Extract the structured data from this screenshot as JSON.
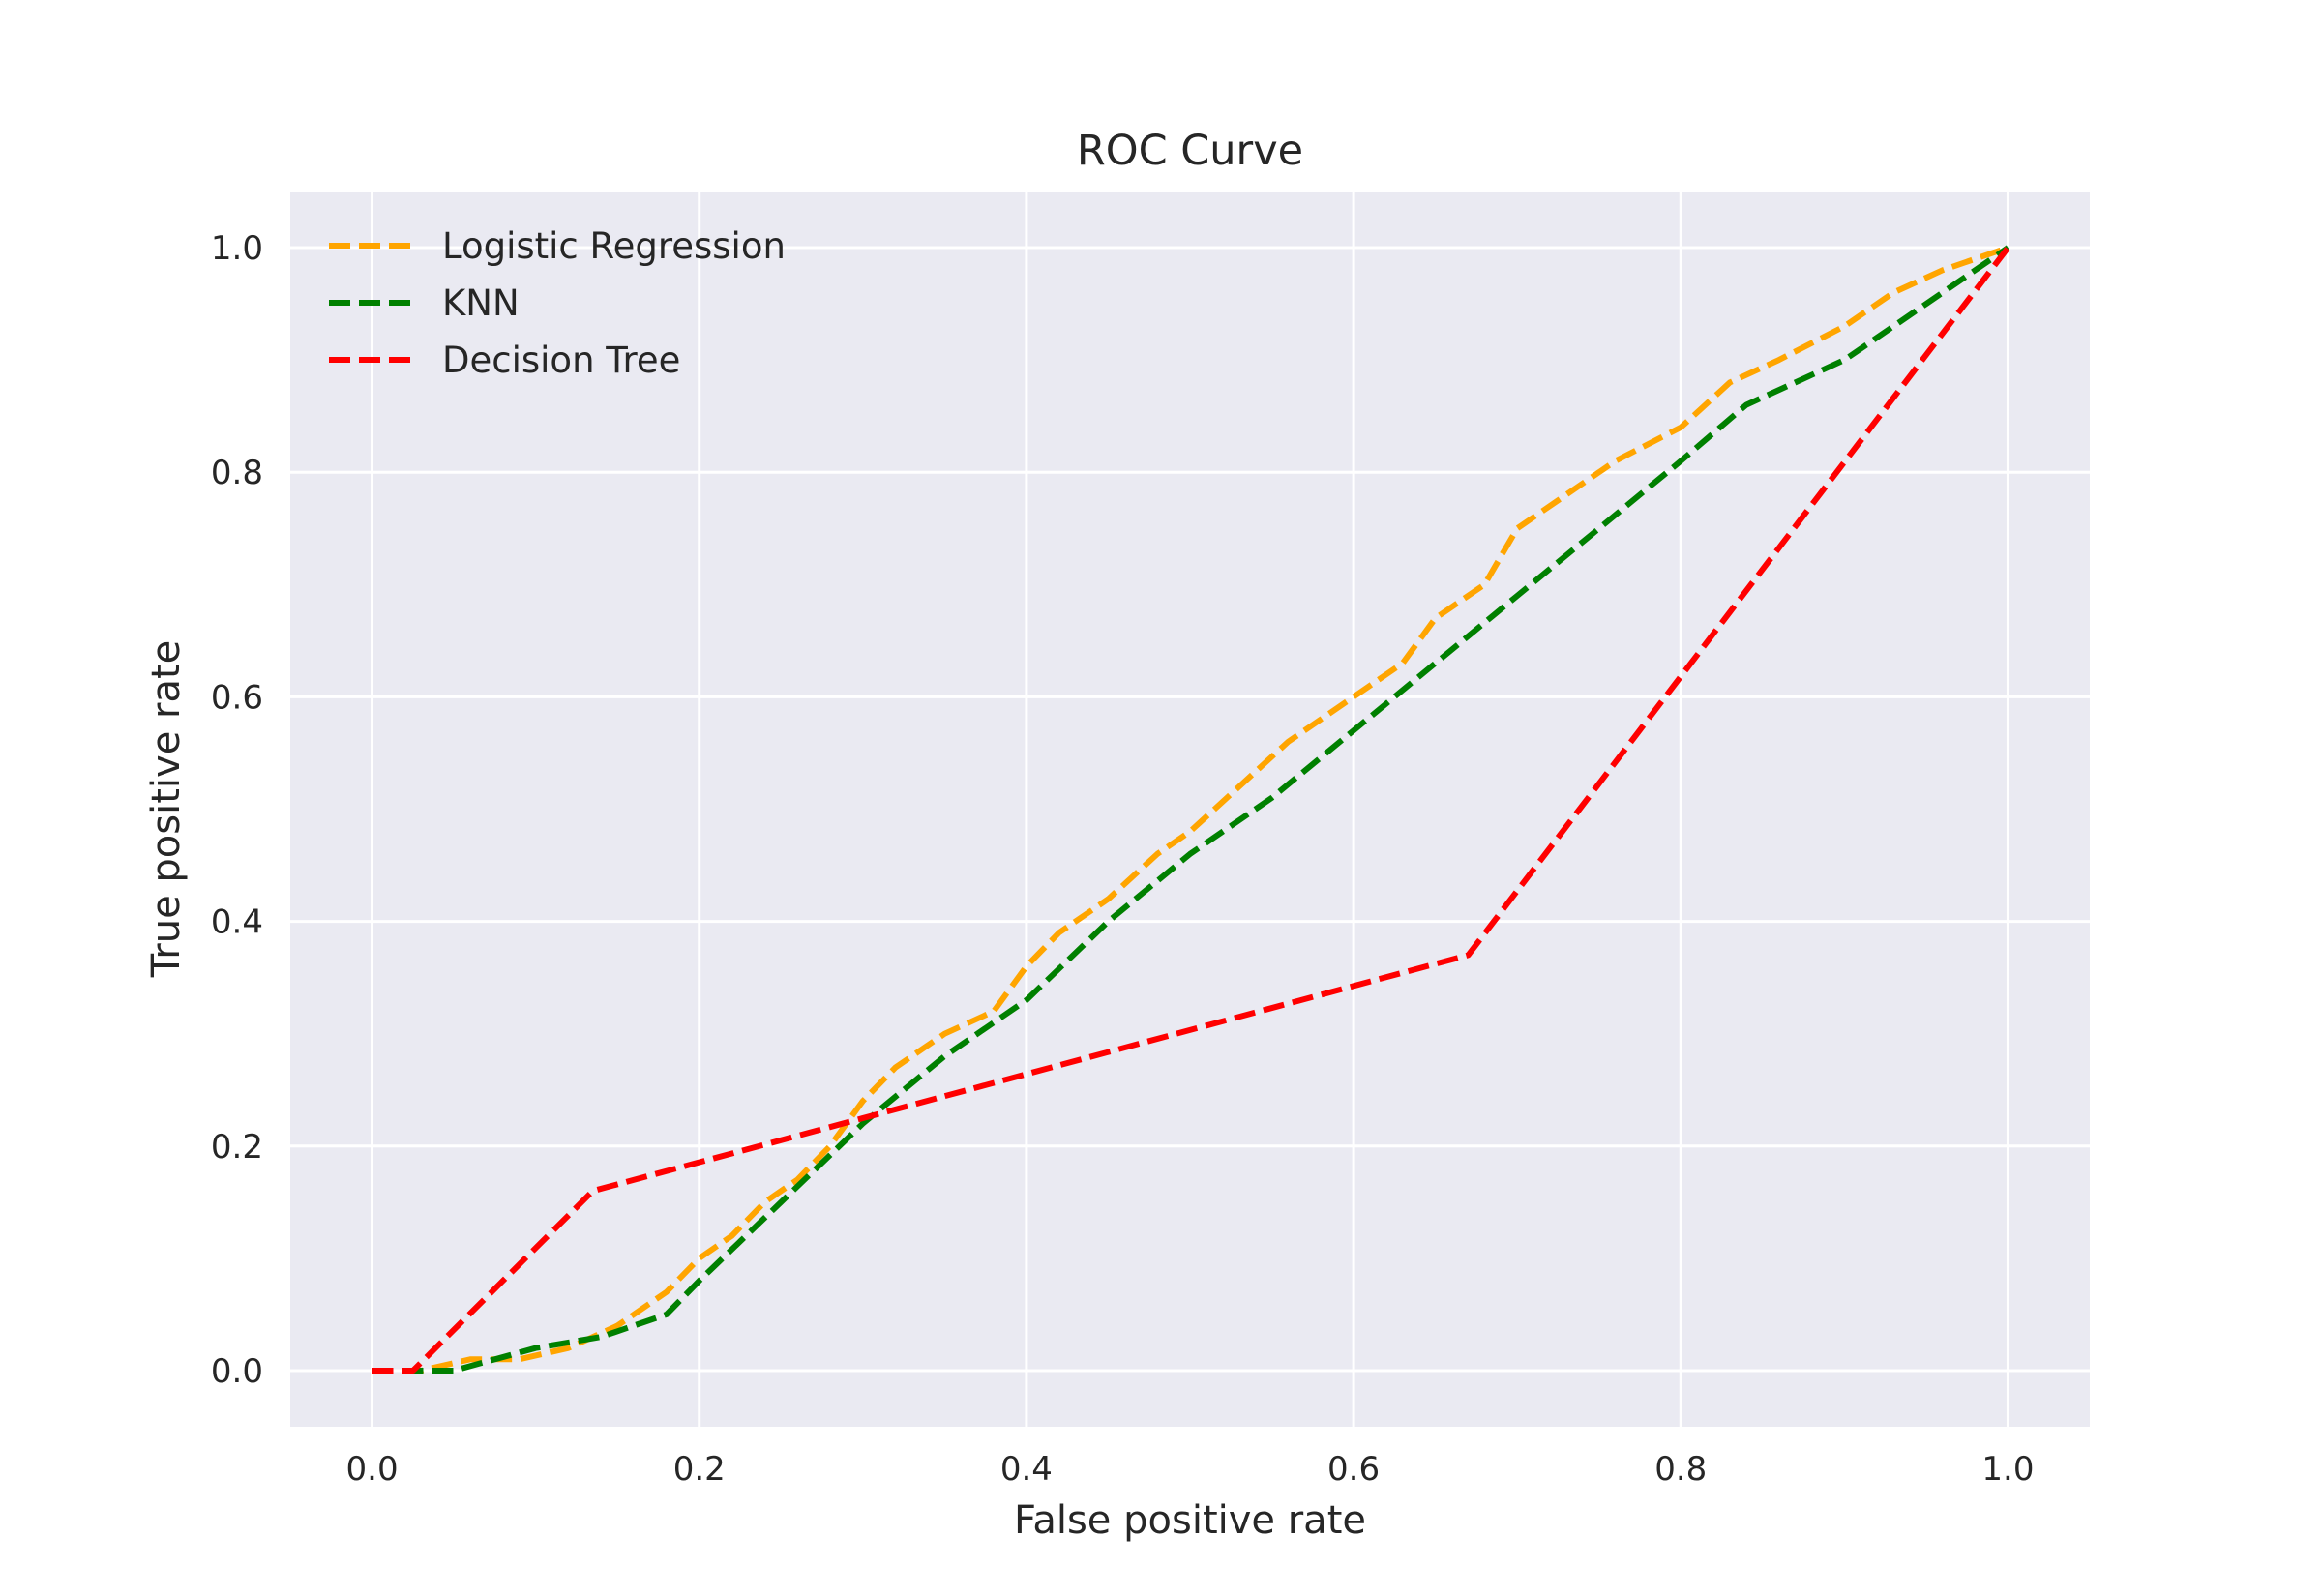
{
  "chart_data": {
    "type": "line",
    "title": "ROC Curve",
    "xlabel": "False positive rate",
    "ylabel": "True positive rate",
    "xlim": [
      -0.05,
      1.05
    ],
    "ylim": [
      -0.05,
      1.05
    ],
    "xticks": [
      0.0,
      0.2,
      0.4,
      0.6,
      0.8,
      1.0
    ],
    "yticks": [
      0.0,
      0.2,
      0.4,
      0.6,
      0.8,
      1.0
    ],
    "xtick_labels": [
      "0.0",
      "0.2",
      "0.4",
      "0.6",
      "0.8",
      "1.0"
    ],
    "ytick_labels": [
      "0.0",
      "0.2",
      "0.4",
      "0.6",
      "0.8",
      "1.0"
    ],
    "grid": true,
    "legend_position": "upper-left",
    "colors": {
      "plot_background": "#eaeaf2",
      "grid": "#ffffff"
    },
    "series": [
      {
        "name": "Logistic Regression",
        "color": "#ffa500",
        "x": [
          0.0,
          0.03,
          0.06,
          0.09,
          0.12,
          0.15,
          0.18,
          0.2,
          0.22,
          0.24,
          0.26,
          0.28,
          0.3,
          0.32,
          0.35,
          0.38,
          0.4,
          0.42,
          0.45,
          0.48,
          0.5,
          0.53,
          0.56,
          0.6,
          0.63,
          0.65,
          0.68,
          0.7,
          0.73,
          0.76,
          0.8,
          0.83,
          0.86,
          0.9,
          0.93,
          0.96,
          1.0
        ],
        "y": [
          0.0,
          0.0,
          0.01,
          0.01,
          0.02,
          0.04,
          0.07,
          0.1,
          0.12,
          0.15,
          0.17,
          0.2,
          0.24,
          0.27,
          0.3,
          0.32,
          0.36,
          0.39,
          0.42,
          0.46,
          0.48,
          0.52,
          0.56,
          0.6,
          0.63,
          0.67,
          0.7,
          0.75,
          0.78,
          0.81,
          0.84,
          0.88,
          0.9,
          0.93,
          0.96,
          0.98,
          1.0
        ]
      },
      {
        "name": "KNN",
        "color": "#008000",
        "x": [
          0.0,
          0.05,
          0.1,
          0.14,
          0.18,
          0.2,
          0.25,
          0.3,
          0.35,
          0.4,
          0.45,
          0.5,
          0.55,
          0.6,
          0.65,
          0.7,
          0.75,
          0.8,
          0.84,
          0.9,
          0.95,
          1.0
        ],
        "y": [
          0.0,
          0.0,
          0.02,
          0.03,
          0.05,
          0.08,
          0.15,
          0.22,
          0.28,
          0.33,
          0.4,
          0.46,
          0.51,
          0.57,
          0.63,
          0.69,
          0.75,
          0.81,
          0.86,
          0.9,
          0.95,
          1.0
        ]
      },
      {
        "name": "Decision Tree",
        "color": "#ff0000",
        "x": [
          0.0,
          0.025,
          0.135,
          0.67,
          1.0
        ],
        "y": [
          0.0,
          0.0,
          0.16,
          0.37,
          1.0
        ]
      }
    ]
  }
}
